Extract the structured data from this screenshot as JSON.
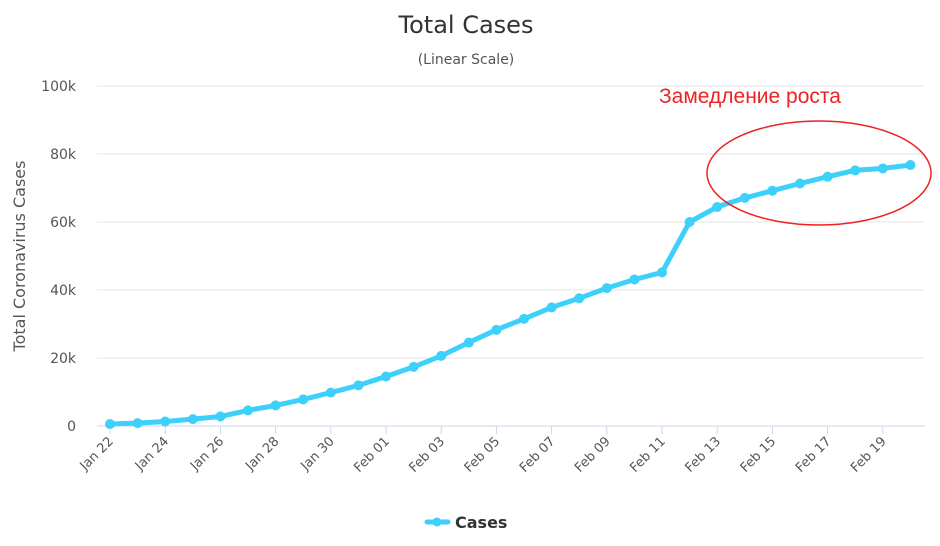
{
  "chart_data": {
    "type": "line",
    "title": "Total Cases",
    "subtitle": "(Linear Scale)",
    "ylabel": "Total Coronavirus Cases",
    "xlabel": "",
    "ylim": [
      0,
      100000
    ],
    "yticks": [
      0,
      20000,
      40000,
      60000,
      80000,
      100000
    ],
    "ytick_labels": [
      "0",
      "20k",
      "40k",
      "60k",
      "80k",
      "100k"
    ],
    "grid": true,
    "legend_position": "bottom-center",
    "x": [
      "Jan 22",
      "Jan 23",
      "Jan 24",
      "Jan 25",
      "Jan 26",
      "Jan 27",
      "Jan 28",
      "Jan 29",
      "Jan 30",
      "Jan 31",
      "Feb 01",
      "Feb 02",
      "Feb 03",
      "Feb 04",
      "Feb 05",
      "Feb 06",
      "Feb 07",
      "Feb 08",
      "Feb 09",
      "Feb 10",
      "Feb 11",
      "Feb 12",
      "Feb 13",
      "Feb 14",
      "Feb 15",
      "Feb 16",
      "Feb 17",
      "Feb 18",
      "Feb 19",
      "Feb 20"
    ],
    "xtick_labels": [
      "Jan 22",
      "Jan 24",
      "Jan 26",
      "Jan 28",
      "Jan 30",
      "Feb 01",
      "Feb 03",
      "Feb 05",
      "Feb 07",
      "Feb 09",
      "Feb 11",
      "Feb 13",
      "Feb 15",
      "Feb 17",
      "Feb 19"
    ],
    "series": [
      {
        "name": "Cases",
        "color": "#3dd0fb",
        "values": [
          580,
          845,
          1320,
          2015,
          2800,
          4600,
          6060,
          7820,
          9830,
          11950,
          14550,
          17390,
          20630,
          24550,
          28280,
          31500,
          34880,
          37560,
          40550,
          43100,
          45170,
          60000,
          64430,
          67100,
          69200,
          71330,
          73330,
          75200,
          75750,
          76770
        ]
      }
    ],
    "annotation": {
      "text": "Замедление роста",
      "color": "#ee2222",
      "shape": "ellipse",
      "highlights": [
        "Feb 13",
        "Feb 20"
      ]
    }
  }
}
